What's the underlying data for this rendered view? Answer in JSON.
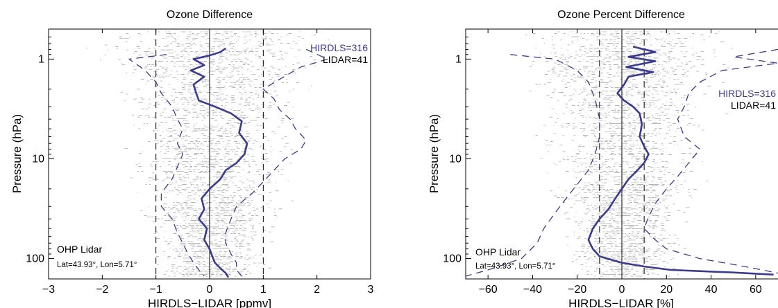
{
  "chart_data": [
    {
      "type": "line",
      "title": "Ozone Difference",
      "xlabel": "HIRDLS−LIDAR [ppmv]",
      "ylabel": "Pressure (hPa)",
      "xlim": [
        -3,
        3
      ],
      "ylim": [
        0.5,
        160
      ],
      "yscale": "log",
      "xticks": [
        "−3",
        "−2",
        "−1",
        "0",
        "1",
        "2",
        "3"
      ],
      "xtick_values": [
        -3,
        -2,
        -1,
        0,
        1,
        2,
        3
      ],
      "yticks": [
        "1",
        "10",
        "100"
      ],
      "ytick_values": [
        1,
        10,
        100
      ],
      "legend": [
        "HIRDLS=316",
        "LIDAR=41"
      ],
      "annotation_lines": [
        "OHP Lidar",
        "Lat=43.93°, Lon=5.71°"
      ],
      "reference_lines_x": [
        -1,
        1
      ],
      "grid": false,
      "series": [
        {
          "name": "HIRDLS=316",
          "role": "mean difference",
          "color": "#3b3a8f",
          "points": [
            [
              0.3,
              0.78
            ],
            [
              0.2,
              0.85
            ],
            [
              0.0,
              0.92
            ],
            [
              -0.3,
              1.0
            ],
            [
              -0.1,
              1.15
            ],
            [
              -0.35,
              1.3
            ],
            [
              -0.1,
              1.5
            ],
            [
              -0.3,
              1.8
            ],
            [
              -0.25,
              2.2
            ],
            [
              -0.2,
              2.6
            ],
            [
              0.1,
              3.0
            ],
            [
              0.4,
              3.5
            ],
            [
              0.6,
              4.2
            ],
            [
              0.55,
              5.5
            ],
            [
              0.7,
              7
            ],
            [
              0.65,
              9
            ],
            [
              0.5,
              11
            ],
            [
              0.3,
              13
            ],
            [
              0.2,
              16
            ],
            [
              0.0,
              20
            ],
            [
              -0.15,
              25
            ],
            [
              -0.1,
              32
            ],
            [
              -0.2,
              40
            ],
            [
              -0.05,
              50
            ],
            [
              -0.1,
              65
            ],
            [
              0.0,
              80
            ],
            [
              0.05,
              95
            ],
            [
              0.1,
              110
            ],
            [
              0.2,
              125
            ],
            [
              0.3,
              140
            ],
            [
              0.35,
              155
            ]
          ]
        },
        {
          "name": "",
          "role": "mean − std",
          "color": "#3b3a8f",
          "dash": true,
          "points": [
            [
              -0.8,
              0.9
            ],
            [
              -1.5,
              1.0
            ],
            [
              -1.2,
              1.3
            ],
            [
              -1.0,
              1.7
            ],
            [
              -0.9,
              2.2
            ],
            [
              -0.7,
              3
            ],
            [
              -0.6,
              4
            ],
            [
              -0.5,
              5
            ],
            [
              -0.6,
              7
            ],
            [
              -0.5,
              9
            ],
            [
              -0.6,
              12
            ],
            [
              -0.7,
              16
            ],
            [
              -0.9,
              22
            ],
            [
              -0.9,
              30
            ],
            [
              -0.7,
              40
            ],
            [
              -0.6,
              55
            ],
            [
              -0.5,
              70
            ],
            [
              -0.4,
              90
            ],
            [
              -0.3,
              110
            ],
            [
              -0.2,
              130
            ],
            [
              -0.1,
              150
            ]
          ]
        },
        {
          "name": "",
          "role": "mean + std",
          "color": "#3b3a8f",
          "dash": true,
          "points": [
            [
              1.8,
              0.8
            ],
            [
              2.2,
              1.0
            ],
            [
              1.7,
              1.2
            ],
            [
              1.3,
              1.6
            ],
            [
              1.0,
              2.0
            ],
            [
              1.2,
              2.5
            ],
            [
              1.3,
              3.2
            ],
            [
              1.5,
              4
            ],
            [
              1.6,
              5
            ],
            [
              1.8,
              6.5
            ],
            [
              1.7,
              8
            ],
            [
              1.4,
              10
            ],
            [
              1.2,
              13
            ],
            [
              1.0,
              17
            ],
            [
              0.8,
              22
            ],
            [
              0.5,
              30
            ],
            [
              0.4,
              40
            ],
            [
              0.3,
              55
            ],
            [
              0.3,
              70
            ],
            [
              0.4,
              90
            ],
            [
              0.5,
              110
            ],
            [
              0.5,
              130
            ],
            [
              0.6,
              150
            ]
          ]
        }
      ]
    },
    {
      "type": "line",
      "title": "Ozone Percent Difference",
      "xlabel": "HIRDLS−LIDAR  [%]",
      "ylabel": "Pressure (hPa)",
      "xlim": [
        -70,
        70
      ],
      "ylim": [
        0.5,
        160
      ],
      "yscale": "log",
      "xticks": [
        "−60",
        "−40",
        "−20",
        "0",
        "20",
        "40",
        "60"
      ],
      "xtick_values": [
        -60,
        -40,
        -20,
        0,
        20,
        40,
        60
      ],
      "yticks": [
        "1",
        "10",
        "100"
      ],
      "ytick_values": [
        1,
        10,
        100
      ],
      "legend": [
        "HIRDLS=316",
        "LIDAR=41"
      ],
      "annotation_lines": [
        "OHP Lidar",
        "Lat=43.93°, Lon=5.71°"
      ],
      "reference_lines_x": [
        -10,
        10
      ],
      "grid": false,
      "series": [
        {
          "name": "HIRDLS=316",
          "role": "mean difference",
          "color": "#3b3a8f",
          "points": [
            [
              5,
              0.75
            ],
            [
              15,
              0.85
            ],
            [
              3,
              0.95
            ],
            [
              15,
              1.05
            ],
            [
              2,
              1.2
            ],
            [
              14,
              1.35
            ],
            [
              3,
              1.5
            ],
            [
              1,
              1.8
            ],
            [
              -2,
              2.2
            ],
            [
              1,
              2.6
            ],
            [
              5,
              3.0
            ],
            [
              8,
              3.5
            ],
            [
              9,
              4.5
            ],
            [
              8,
              6
            ],
            [
              10,
              7.5
            ],
            [
              12,
              9
            ],
            [
              10,
              11
            ],
            [
              7,
              13
            ],
            [
              3,
              16
            ],
            [
              0,
              20
            ],
            [
              -3,
              25
            ],
            [
              -6,
              32
            ],
            [
              -10,
              40
            ],
            [
              -13,
              50
            ],
            [
              -15,
              65
            ],
            [
              -13,
              80
            ],
            [
              -10,
              95
            ],
            [
              0,
              110
            ],
            [
              10,
              120
            ],
            [
              22,
              130
            ],
            [
              50,
              138
            ],
            [
              68,
              145
            ]
          ]
        },
        {
          "name": "",
          "role": "mean − std",
          "color": "#3b3a8f",
          "dash": true,
          "points": [
            [
              -50,
              0.9
            ],
            [
              -30,
              1.0
            ],
            [
              -20,
              1.3
            ],
            [
              -15,
              1.7
            ],
            [
              -12,
              2.5
            ],
            [
              -10,
              4
            ],
            [
              -10,
              6
            ],
            [
              -12,
              9
            ],
            [
              -15,
              13
            ],
            [
              -20,
              18
            ],
            [
              -25,
              25
            ],
            [
              -30,
              35
            ],
            [
              -35,
              50
            ],
            [
              -38,
              70
            ],
            [
              -45,
              100
            ],
            [
              -60,
              130
            ],
            [
              -70,
              150
            ]
          ]
        },
        {
          "name": "",
          "role": "mean + std",
          "color": "#3b3a8f",
          "dash": true,
          "points": [
            [
              70,
              0.8
            ],
            [
              50,
              0.95
            ],
            [
              70,
              1.1
            ],
            [
              45,
              1.3
            ],
            [
              35,
              1.7
            ],
            [
              30,
              2.2
            ],
            [
              28,
              3
            ],
            [
              25,
              4
            ],
            [
              28,
              6
            ],
            [
              35,
              8
            ],
            [
              30,
              11
            ],
            [
              25,
              15
            ],
            [
              20,
              20
            ],
            [
              15,
              28
            ],
            [
              12,
              38
            ],
            [
              10,
              50
            ],
            [
              15,
              65
            ],
            [
              20,
              80
            ],
            [
              35,
              100
            ],
            [
              55,
              120
            ],
            [
              70,
              140
            ]
          ]
        }
      ]
    }
  ]
}
